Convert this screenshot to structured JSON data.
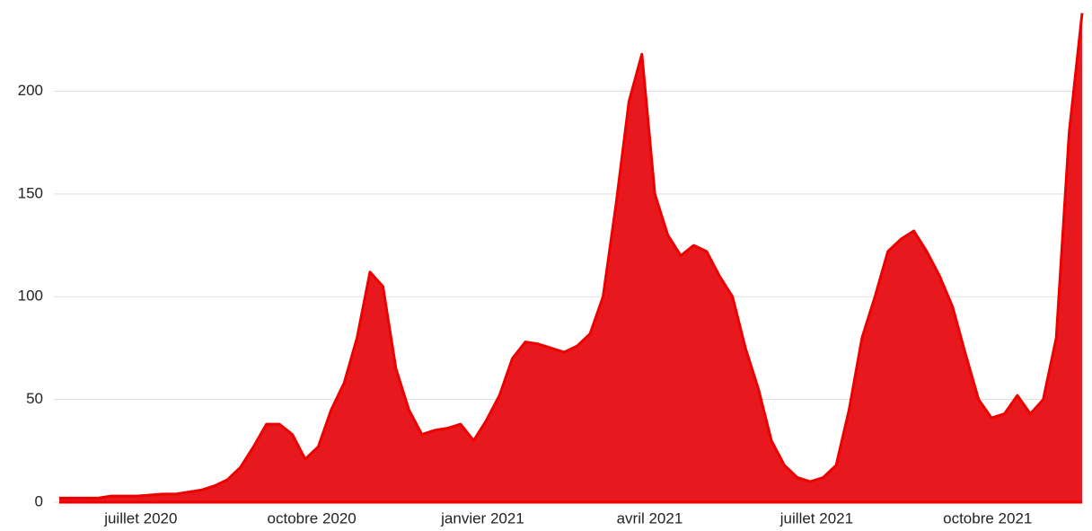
{
  "chart_data": {
    "type": "area",
    "categories": [
      null,
      null,
      null,
      null,
      null,
      null,
      null,
      null,
      null,
      null,
      null,
      null,
      null,
      null,
      null,
      null,
      null,
      null,
      null,
      null,
      null,
      null,
      null,
      null,
      null,
      null,
      null,
      null,
      null,
      null,
      null,
      null,
      null,
      null,
      null,
      null,
      null,
      null,
      null,
      null,
      null,
      null,
      null,
      null,
      null,
      null,
      null,
      null,
      null,
      null,
      null,
      null,
      null,
      null,
      null,
      null,
      null,
      null,
      null,
      null,
      null,
      null,
      null,
      null,
      null,
      null,
      null,
      null,
      null,
      null,
      null,
      null,
      null,
      null,
      null,
      null,
      null,
      null,
      null,
      null
    ],
    "values": [
      2,
      2,
      2,
      2,
      3,
      3,
      3,
      3.5,
      4,
      4,
      5,
      6,
      8,
      11,
      17,
      27,
      38,
      38,
      33,
      21,
      27,
      45,
      58,
      80,
      112,
      105,
      65,
      45,
      33,
      35,
      36,
      38,
      30,
      40,
      52,
      70,
      78,
      77,
      75,
      73,
      76,
      82,
      100,
      145,
      195,
      218,
      150,
      130,
      120,
      125,
      122,
      110,
      100,
      75,
      55,
      30,
      18,
      12,
      10,
      12,
      18,
      45,
      80,
      100,
      122,
      128,
      132,
      122,
      110,
      95,
      72,
      50,
      41,
      43,
      52,
      43,
      50,
      80,
      180,
      238
    ],
    "color": "#e8191e",
    "xticks": [
      {
        "value": 6.3,
        "label": "juillet 2020"
      },
      {
        "value": 19.5,
        "label": "octobre 2020"
      },
      {
        "value": 32.7,
        "label": "janvier 2021"
      },
      {
        "value": 45.6,
        "label": "avril 2021"
      },
      {
        "value": 58.5,
        "label": "juillet 2021"
      },
      {
        "value": 71.7,
        "label": "octobre 2021"
      }
    ],
    "ylim": [
      0,
      240
    ],
    "yticks": [
      0,
      50,
      100,
      150,
      200
    ],
    "grid": true
  }
}
